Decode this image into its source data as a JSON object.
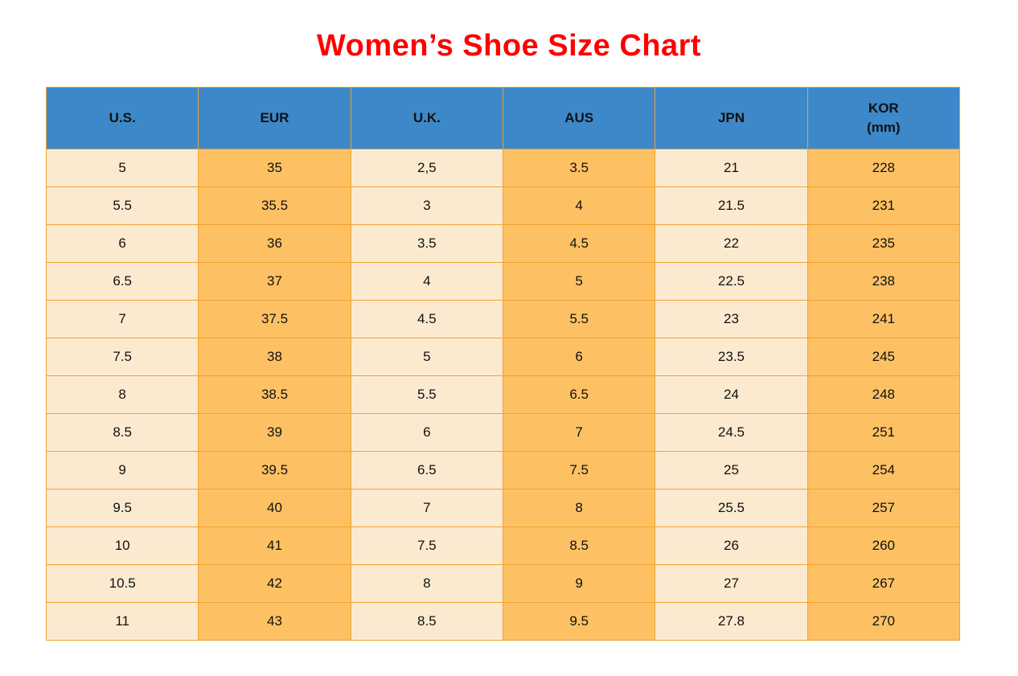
{
  "title": "Women’s Shoe Size Chart",
  "colors": {
    "title_red": "#fe0000",
    "header_blue": "#3d88c8",
    "cell_cream": "#fcead0",
    "cell_orange": "#fdc164",
    "grid_border": "#f0a232",
    "text": "#111111"
  },
  "table": {
    "columns": [
      {
        "label": "U.S.",
        "sublabel": ""
      },
      {
        "label": "EUR",
        "sublabel": ""
      },
      {
        "label": "U.K.",
        "sublabel": ""
      },
      {
        "label": "AUS",
        "sublabel": ""
      },
      {
        "label": "JPN",
        "sublabel": ""
      },
      {
        "label": "KOR",
        "sublabel": "(mm)"
      }
    ]
  },
  "chart_data": {
    "type": "table",
    "title": "Women’s Shoe Size Chart",
    "columns": [
      "U.S.",
      "EUR",
      "U.K.",
      "AUS",
      "JPN",
      "KOR (mm)"
    ],
    "rows": [
      [
        "5",
        "35",
        "2,5",
        "3.5",
        "21",
        "228"
      ],
      [
        "5.5",
        "35.5",
        "3",
        "4",
        "21.5",
        "231"
      ],
      [
        "6",
        "36",
        "3.5",
        "4.5",
        "22",
        "235"
      ],
      [
        "6.5",
        "37",
        "4",
        "5",
        "22.5",
        "238"
      ],
      [
        "7",
        "37.5",
        "4.5",
        "5.5",
        "23",
        "241"
      ],
      [
        "7.5",
        "38",
        "5",
        "6",
        "23.5",
        "245"
      ],
      [
        "8",
        "38.5",
        "5.5",
        "6.5",
        "24",
        "248"
      ],
      [
        "8.5",
        "39",
        "6",
        "7",
        "24.5",
        "251"
      ],
      [
        "9",
        "39.5",
        "6.5",
        "7.5",
        "25",
        "254"
      ],
      [
        "9.5",
        "40",
        "7",
        "8",
        "25.5",
        "257"
      ],
      [
        "10",
        "41",
        "7.5",
        "8.5",
        "26",
        "260"
      ],
      [
        "10.5",
        "42",
        "8",
        "9",
        "27",
        "267"
      ],
      [
        "11",
        "43",
        "8.5",
        "9.5",
        "27.8",
        "270"
      ]
    ],
    "layout_hints": {
      "header_background": "#3d88c8",
      "odd_column_background": "#fcead0",
      "even_column_background": "#fdc164",
      "grid": true
    }
  }
}
